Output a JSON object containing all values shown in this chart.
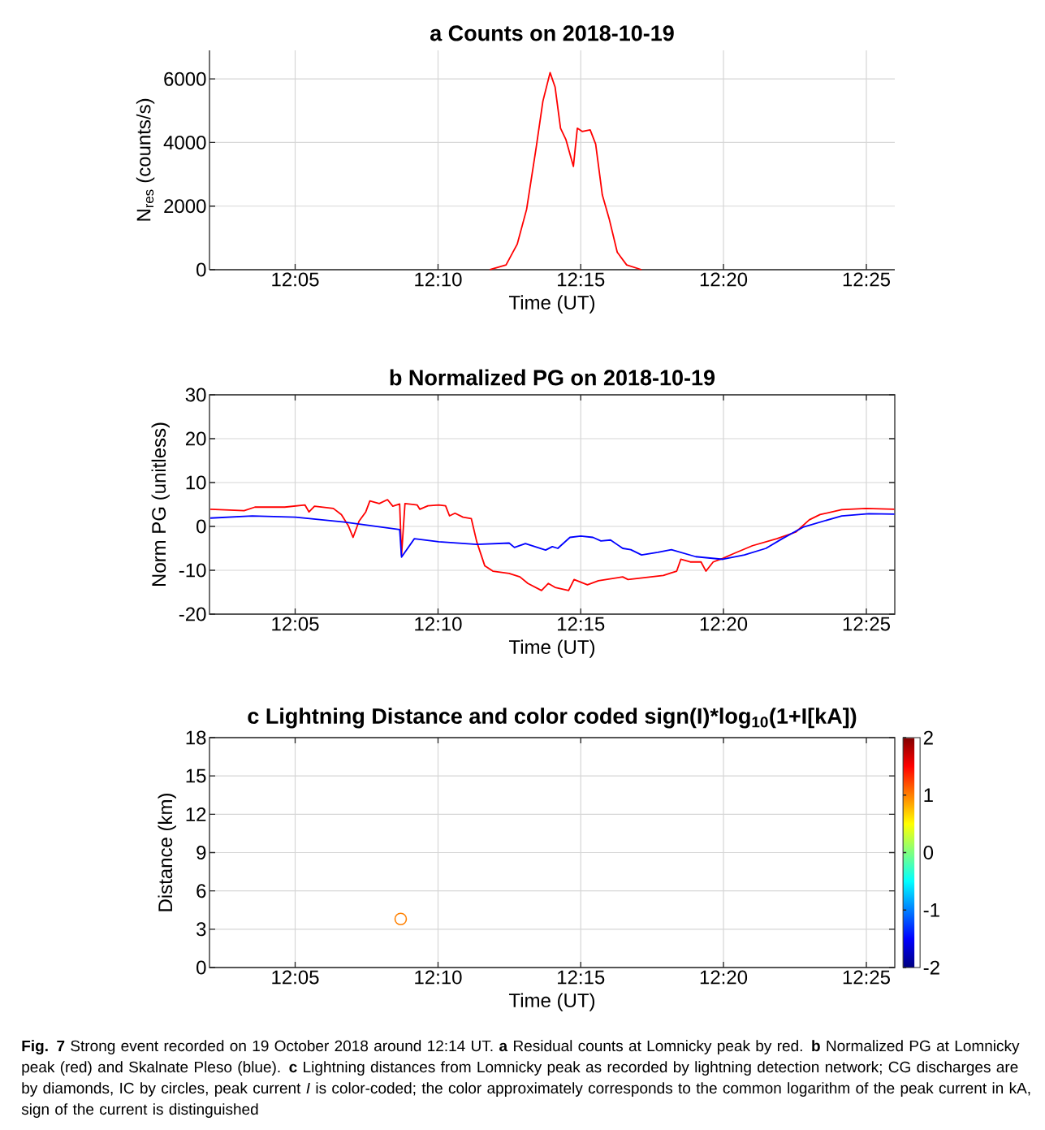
{
  "chart_data": [
    {
      "type": "line",
      "title": "a  Counts on 2018-10-19",
      "xlabel": "Time (UT)",
      "ylabel": "N$_{res}$ (counts/s)",
      "grid": true,
      "xlim": [
        12.0333,
        12.4333
      ],
      "ylim": [
        0,
        6900
      ],
      "xticks": [
        {
          "value": 12.0833,
          "label": "12:05"
        },
        {
          "value": 12.1667,
          "label": "12:10"
        },
        {
          "value": 12.25,
          "label": "12:15"
        },
        {
          "value": 12.3333,
          "label": "12:20"
        },
        {
          "value": 12.4167,
          "label": "12:25"
        }
      ],
      "yticks": [
        0,
        2000,
        4000,
        6000
      ],
      "series": [
        {
          "color": "#ff0000",
          "x": [
            12.197,
            12.2064,
            12.2129,
            12.2184,
            12.224,
            12.2279,
            12.2321,
            12.235,
            12.2382,
            12.2413,
            12.2457,
            12.248,
            12.2508,
            12.2555,
            12.2587,
            12.2626,
            12.2666,
            12.2713,
            12.2768,
            12.2855
          ],
          "values": [
            0,
            150,
            800,
            1900,
            3850,
            5300,
            6200,
            5750,
            4450,
            4100,
            3250,
            4450,
            4350,
            4400,
            3950,
            2350,
            1600,
            550,
            150,
            0
          ]
        }
      ]
    },
    {
      "type": "line",
      "title": "b  Normalized PG on 2018-10-19",
      "xlabel": "Time (UT)",
      "ylabel": "Norm PG (unitless)",
      "grid": true,
      "xlim": [
        12.0333,
        12.4333
      ],
      "ylim": [
        -20,
        30
      ],
      "xticks": [
        {
          "value": 12.0833,
          "label": "12:05"
        },
        {
          "value": 12.1667,
          "label": "12:10"
        },
        {
          "value": 12.25,
          "label": "12:15"
        },
        {
          "value": 12.3333,
          "label": "12:20"
        },
        {
          "value": 12.4167,
          "label": "12:25"
        }
      ],
      "yticks": [
        -20,
        -10,
        0,
        10,
        20,
        30
      ],
      "series": [
        {
          "color": "#ff0000",
          "x": [
            12.0338,
            12.0535,
            12.0598,
            12.0772,
            12.089,
            12.0914,
            12.0946,
            12.1056,
            12.1103,
            12.1143,
            12.1171,
            12.1206,
            12.1245,
            12.1269,
            12.1324,
            12.1372,
            12.1403,
            12.1443,
            12.1454,
            12.1474,
            12.1545,
            12.1561,
            12.1608,
            12.1671,
            12.1711,
            12.1734,
            12.1766,
            12.1813,
            12.1861,
            12.1893,
            12.194,
            12.1987,
            12.2082,
            12.2145,
            12.2192,
            12.2271,
            12.2311,
            12.235,
            12.2429,
            12.2461,
            12.2539,
            12.2603,
            12.2745,
            12.2776,
            12.2982,
            12.3029,
            12.306,
            12.3084,
            12.3139,
            12.3202,
            12.3231,
            12.3273,
            12.3329,
            12.3392,
            12.3502,
            12.3644,
            12.3755,
            12.3834,
            12.3897,
            12.4023,
            12.4165,
            12.4331
          ],
          "values": [
            3.9,
            3.6,
            4.4,
            4.4,
            4.9,
            3.3,
            4.6,
            4.1,
            2.7,
            0.2,
            -2.5,
            1.2,
            3.3,
            5.8,
            5.2,
            6.1,
            4.6,
            5.1,
            -6.5,
            5.2,
            4.9,
            3.9,
            4.7,
            4.9,
            4.7,
            2.4,
            3.0,
            2.1,
            1.8,
            -3.5,
            -9.0,
            -10.2,
            -10.7,
            -11.5,
            -13.0,
            -14.6,
            -13.0,
            -13.9,
            -14.6,
            -12.1,
            -13.3,
            -12.4,
            -11.5,
            -12.1,
            -11.2,
            -10.6,
            -10.2,
            -7.5,
            -8.1,
            -8.1,
            -10.2,
            -8.1,
            -7.3,
            -6.2,
            -4.4,
            -2.8,
            -1.3,
            1.5,
            2.7,
            3.8,
            4.1,
            3.9
          ]
        },
        {
          "color": "#0000ff",
          "x": [
            12.0338,
            12.0582,
            12.0835,
            12.1119,
            12.1443,
            12.1454,
            12.1529,
            12.1671,
            12.1782,
            12.1893,
            12.2082,
            12.2113,
            12.2177,
            12.2295,
            12.2334,
            12.2366,
            12.2437,
            12.25,
            12.2571,
            12.2618,
            12.2674,
            12.2745,
            12.2792,
            12.2855,
            12.295,
            12.3029,
            12.3171,
            12.3329,
            12.3455,
            12.3581,
            12.3676,
            12.3802,
            12.4023,
            12.4181,
            12.4331
          ],
          "values": [
            1.9,
            2.4,
            2.1,
            1.0,
            -0.7,
            -7.0,
            -2.8,
            -3.5,
            -3.8,
            -4.1,
            -3.8,
            -4.8,
            -3.9,
            -5.4,
            -4.6,
            -5.0,
            -2.5,
            -2.2,
            -2.5,
            -3.3,
            -3.1,
            -5.0,
            -5.3,
            -6.5,
            -5.9,
            -5.3,
            -6.9,
            -7.5,
            -6.5,
            -5.0,
            -2.8,
            -0.1,
            2.4,
            2.9,
            2.8
          ]
        }
      ]
    },
    {
      "type": "scatter",
      "title": "c  Lightning Distance and color coded sign(I)*log$_{10}$(1+I[kA])",
      "xlabel": "Time (UT)",
      "ylabel": "Distance (km)",
      "grid": true,
      "marker": "circle",
      "xlim": [
        12.0333,
        12.4333
      ],
      "ylim": [
        0,
        18
      ],
      "xticks": [
        {
          "value": 12.0833,
          "label": "12:05"
        },
        {
          "value": 12.1667,
          "label": "12:10"
        },
        {
          "value": 12.25,
          "label": "12:15"
        },
        {
          "value": 12.3333,
          "label": "12:20"
        },
        {
          "value": 12.4167,
          "label": "12:25"
        }
      ],
      "yticks": [
        0,
        3,
        6,
        9,
        12,
        15,
        18
      ],
      "clim": [
        -2,
        2
      ],
      "cticks": [
        -2,
        -1,
        0,
        1,
        2
      ],
      "series": [
        {
          "x": [
            12.1449
          ],
          "values": [
            3.8
          ],
          "cvalues": [
            1.0
          ]
        }
      ],
      "annotations": [
        "**Fig. 7** Strong event recorded on 19 October 2018 around 12:14 UT. **a** Residual counts at Lomnicky peak by red. **b** Normalized PG at Lomnicky peak (red) and Skalnate Pleso (blue). **c** Lightning distances from Lomnicky peak as recorded by lightning detection network; CG discharges are by diamonds, IC by circles, peak current *I* is color-coded; the color approximately corresponds to the common logarithm of the peak current in kA, sign of the current is distinguished"
      ]
    }
  ]
}
